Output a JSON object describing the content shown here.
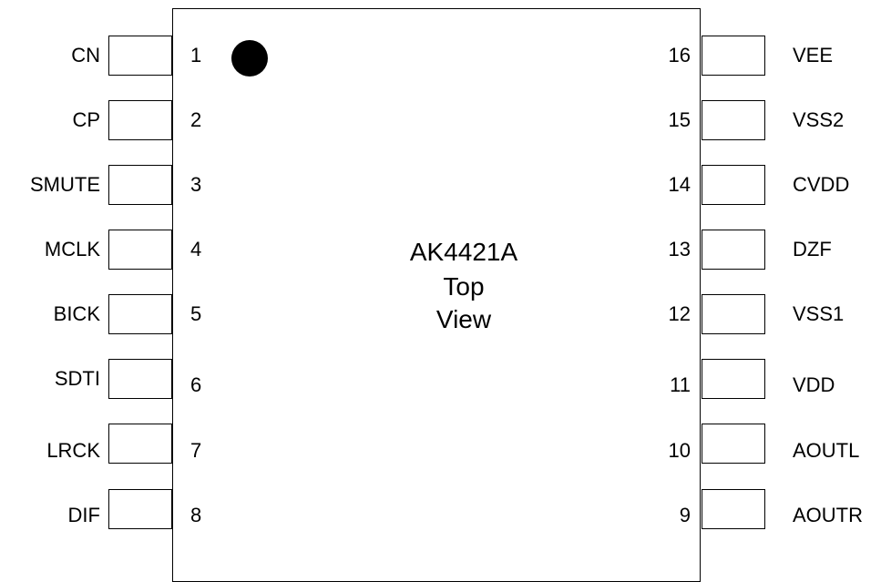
{
  "chip": {
    "part_number": "AK4421A",
    "view_line1": "Top",
    "view_line2": "View"
  },
  "left_pins": [
    {
      "number": "1",
      "name": "CN"
    },
    {
      "number": "2",
      "name": "CP"
    },
    {
      "number": "3",
      "name": "SMUTE"
    },
    {
      "number": "4",
      "name": "MCLK"
    },
    {
      "number": "5",
      "name": "BICK"
    },
    {
      "number": "6",
      "name": "SDTI"
    },
    {
      "number": "7",
      "name": "LRCK"
    },
    {
      "number": "8",
      "name": "DIF"
    }
  ],
  "right_pins": [
    {
      "number": "16",
      "name": "VEE"
    },
    {
      "number": "15",
      "name": "VSS2"
    },
    {
      "number": "14",
      "name": "CVDD"
    },
    {
      "number": "13",
      "name": "DZF"
    },
    {
      "number": "12",
      "name": "VSS1"
    },
    {
      "number": "11",
      "name": "VDD"
    },
    {
      "number": "10",
      "name": "AOUTL"
    },
    {
      "number": "9",
      "name": "AOUTR"
    }
  ]
}
